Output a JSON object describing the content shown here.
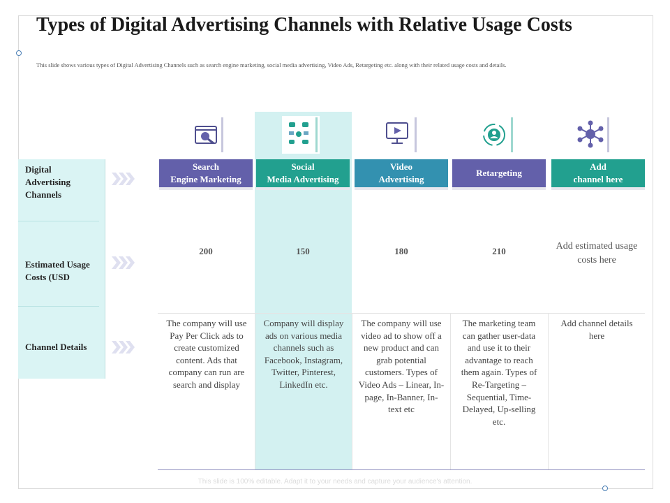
{
  "title": "Types of Digital Advertising Channels with Relative Usage Costs",
  "subtitle": "This slide shows various types of Digital Advertising Channels such as search engine marketing, social media advertising, Video Ads, Retargeting etc. along with their related usage costs and details.",
  "row_labels": [
    "Digital\nAdvertising\nChannels",
    "Estimated Usage\nCosts (USD",
    "Channel Details"
  ],
  "columns": [
    {
      "header": "Search\nEngine Marketing",
      "cost": "200",
      "details": "The company will use Pay Per Click ads to create customized content. Ads that company can run are search and display",
      "color": "#6360aa",
      "icon": "search-engine-icon"
    },
    {
      "header": "Social\nMedia Advertising",
      "cost": "150",
      "details": "Company will display ads on various media channels such as Facebook, Instagram, Twitter, Pinterest, LinkedIn etc.",
      "color": "#22a08f",
      "icon": "social-media-icon"
    },
    {
      "header": "Video\nAdvertising",
      "cost": "180",
      "details": "The company will use video ad to show off a new product and can grab potential customers. Types of Video Ads – Linear, In-page, In-Banner, In-text etc",
      "color": "#3391b0",
      "icon": "video-monitor-icon"
    },
    {
      "header": "Retargeting",
      "cost": "210",
      "details": "The marketing team can gather user-data and use it to their advantage to reach them again. Types of Re-Targeting – Sequential, Time-Delayed, Up-selling etc.",
      "color": "#6360aa",
      "icon": "retargeting-user-icon"
    },
    {
      "header": "Add\nchannel here",
      "cost": "Add estimated usage costs here",
      "details": "Add channel details here",
      "color": "#22a08f",
      "icon": "network-icon"
    }
  ],
  "footer": "This slide is 100% editable. Adapt it to your needs and capture your audience's attention.",
  "colors": {
    "highlight_column": "#d3f1f1",
    "left_panel": "#daf4f4",
    "accent_purple": "#6360aa",
    "accent_teal": "#22a08f",
    "accent_blue": "#3391b0"
  }
}
